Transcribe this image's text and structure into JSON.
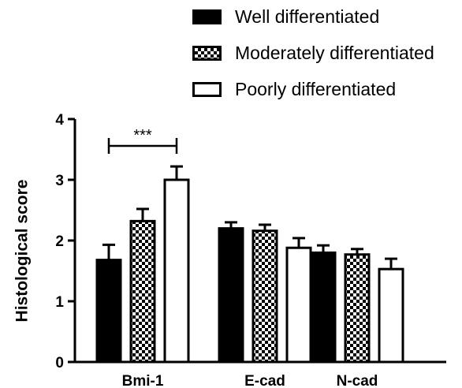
{
  "chart_data": {
    "type": "bar",
    "categories": [
      "Bmi-1",
      "E-cad",
      "N-cad"
    ],
    "series": [
      {
        "name": "Well differentiated",
        "pattern": "solid",
        "values": [
          1.68,
          2.2,
          1.8
        ],
        "errors": [
          0.25,
          0.1,
          0.12
        ]
      },
      {
        "name": "Moderately differentiated",
        "pattern": "checker",
        "values": [
          2.32,
          2.16,
          1.77
        ],
        "errors": [
          0.2,
          0.1,
          0.09
        ]
      },
      {
        "name": "Poorly differentiated",
        "pattern": "open",
        "values": [
          3.0,
          1.88,
          1.53
        ],
        "errors": [
          0.22,
          0.16,
          0.17
        ]
      }
    ],
    "ylabel": "Histological score",
    "xlabel": "",
    "ylim": [
      0,
      4
    ],
    "yticks": [
      0,
      1,
      2,
      3,
      4
    ],
    "grid": false,
    "legend_position": "top-right",
    "significance": {
      "label": "***",
      "category": "Bmi-1",
      "from_series": 0,
      "to_series": 2
    }
  },
  "colors": {
    "bar_fill": "#000000",
    "stroke": "#000000",
    "open_fill": "#ffffff"
  }
}
